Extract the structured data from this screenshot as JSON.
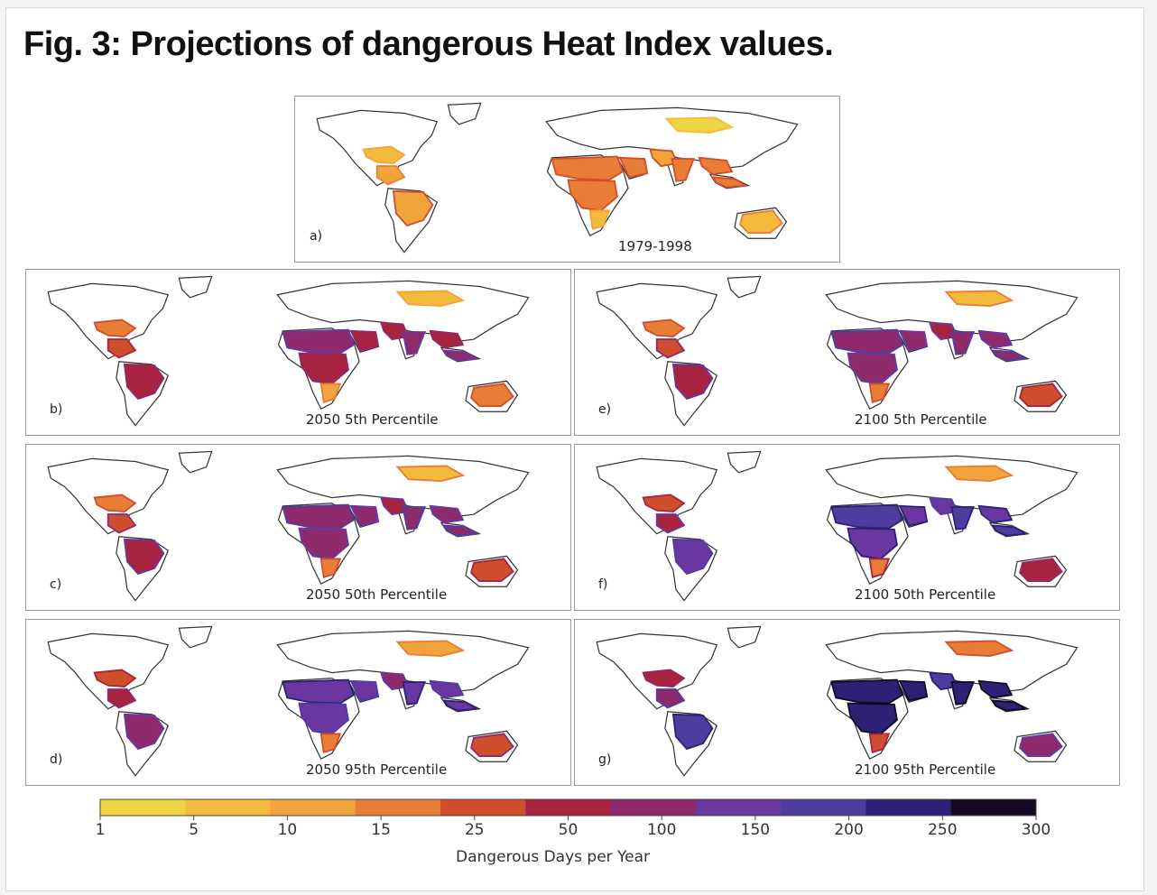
{
  "figure": {
    "title": "Fig. 3: Projections of dangerous Heat Index values."
  },
  "chart_data": {
    "type": "heatmap",
    "title": "Fig. 3: Projections of dangerous Heat Index values.",
    "panels": [
      {
        "id": "a",
        "letter": "a)",
        "label": "1979-1998",
        "intensity": 0.0
      },
      {
        "id": "b",
        "letter": "b)",
        "label": "2050 5th Percentile",
        "intensity": 0.42
      },
      {
        "id": "c",
        "letter": "c)",
        "label": "2050 50th Percentile",
        "intensity": 0.55
      },
      {
        "id": "d",
        "letter": "d)",
        "label": "2050 95th Percentile",
        "intensity": 0.68
      },
      {
        "id": "e",
        "letter": "e)",
        "label": "2100 5th Percentile",
        "intensity": 0.55
      },
      {
        "id": "f",
        "letter": "f)",
        "label": "2100 50th Percentile",
        "intensity": 0.8
      },
      {
        "id": "g",
        "letter": "g)",
        "label": "2100 95th Percentile",
        "intensity": 1.0
      }
    ],
    "colorbar": {
      "label": "Dangerous Days per Year",
      "ticks": [
        "1",
        "5",
        "10",
        "15",
        "25",
        "50",
        "100",
        "150",
        "200",
        "250",
        "300"
      ],
      "colors": [
        "#efd544",
        "#f2bb3c",
        "#f2a43c",
        "#ea7d35",
        "#cf4f2d",
        "#a82340",
        "#8e2a6c",
        "#6a37a0",
        "#4f3c9f",
        "#2d2176",
        "#140a22"
      ]
    }
  }
}
